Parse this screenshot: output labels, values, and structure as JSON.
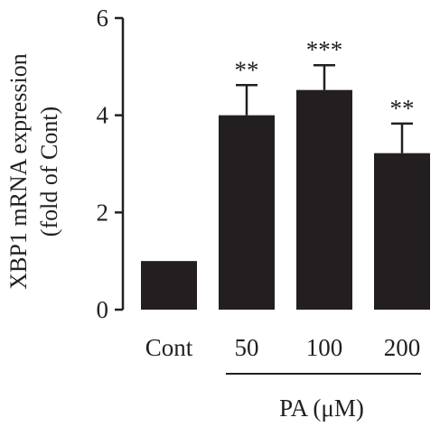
{
  "chart_data": {
    "type": "bar",
    "categories": [
      "Cont",
      "50",
      "100",
      "200"
    ],
    "values": [
      1.0,
      4.0,
      4.52,
      3.22
    ],
    "error_upper": [
      1.0,
      4.62,
      5.03,
      3.83
    ],
    "significance": [
      "",
      "**",
      "***",
      "**"
    ],
    "ylabel_line1": "XBP1 mRNA expression",
    "ylabel_line2": "(fold of Cont)",
    "group_label": "PA (μM)",
    "ylim": [
      0,
      6
    ],
    "yticks": [
      "0",
      "2",
      "4",
      "6"
    ],
    "bar_color": "#231f20",
    "grid": false,
    "legend": "none"
  }
}
